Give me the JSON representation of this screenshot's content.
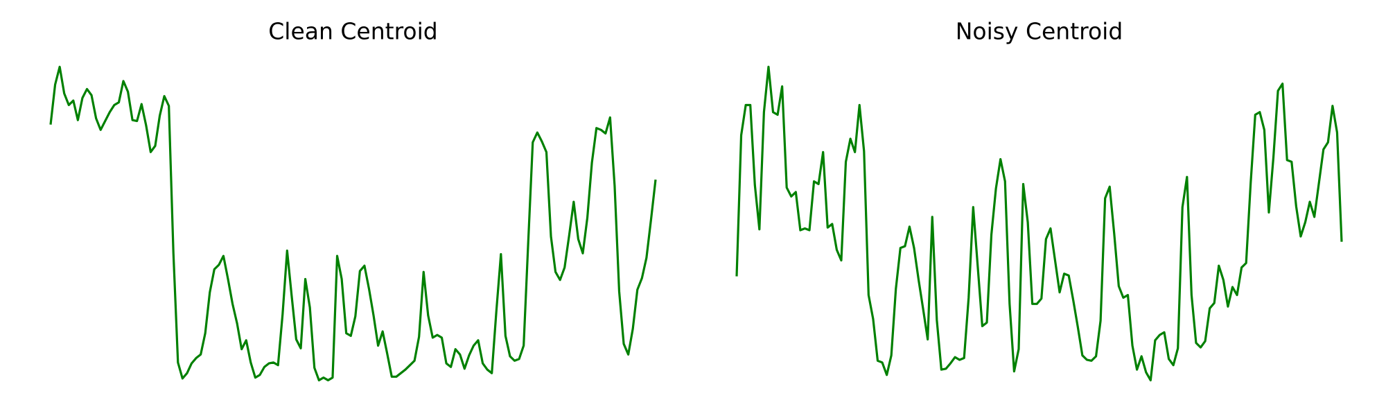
{
  "chart_data": [
    {
      "type": "line",
      "title": "Clean Centroid",
      "color": "#008000",
      "ylim": [
        20,
        380
      ],
      "values": [
        310,
        355,
        375,
        345,
        332,
        337,
        315,
        340,
        350,
        343,
        317,
        304,
        314,
        324,
        332,
        335,
        359,
        347,
        315,
        314,
        333,
        309,
        279,
        286,
        320,
        342,
        331,
        165,
        42,
        24,
        30,
        41,
        47,
        51,
        75,
        121,
        147,
        152,
        162,
        136,
        108,
        86,
        57,
        67,
        42,
        25,
        28,
        37,
        41,
        42,
        39,
        96,
        168,
        117,
        68,
        58,
        136,
        104,
        36,
        22,
        25,
        22,
        25,
        162,
        136,
        75,
        72,
        94,
        145,
        151,
        125,
        95,
        61,
        77,
        52,
        26,
        26,
        30,
        34,
        39,
        44,
        71,
        144,
        95,
        70,
        73,
        70,
        41,
        37,
        57,
        51,
        35,
        50,
        61,
        67,
        41,
        34,
        30,
        100,
        164,
        72,
        49,
        44,
        46,
        61,
        177,
        290,
        301,
        291,
        279,
        184,
        144,
        135,
        149,
        185,
        223,
        181,
        165,
        205,
        267,
        306,
        304,
        300,
        318,
        241,
        122,
        63,
        51,
        80,
        124,
        137,
        160,
        203,
        248
      ]
    },
    {
      "type": "line",
      "title": "Noisy Centroid",
      "color": "#008000",
      "ylim": [
        20,
        380
      ],
      "values": [
        139,
        298,
        332,
        332,
        242,
        192,
        324,
        375,
        324,
        321,
        353,
        239,
        229,
        234,
        191,
        193,
        191,
        246,
        243,
        279,
        194,
        198,
        169,
        157,
        268,
        294,
        279,
        332,
        280,
        118,
        91,
        44,
        42,
        28,
        50,
        125,
        171,
        173,
        195,
        171,
        135,
        102,
        68,
        206,
        90,
        34,
        35,
        41,
        48,
        45,
        47,
        115,
        217,
        150,
        83,
        87,
        186,
        238,
        271,
        246,
        108,
        32,
        57,
        243,
        200,
        108,
        108,
        114,
        181,
        193,
        157,
        121,
        142,
        140,
        112,
        82,
        50,
        45,
        44,
        49,
        89,
        227,
        240,
        187,
        128,
        115,
        118,
        61,
        34,
        49,
        31,
        22,
        67,
        73,
        76,
        46,
        39,
        58,
        217,
        251,
        118,
        64,
        59,
        66,
        103,
        109,
        151,
        135,
        105,
        127,
        118,
        149,
        154,
        244,
        321,
        324,
        304,
        211,
        273,
        348,
        356,
        270,
        268,
        218,
        184,
        200,
        223,
        206,
        244,
        282,
        290,
        331,
        301,
        178
      ]
    }
  ]
}
